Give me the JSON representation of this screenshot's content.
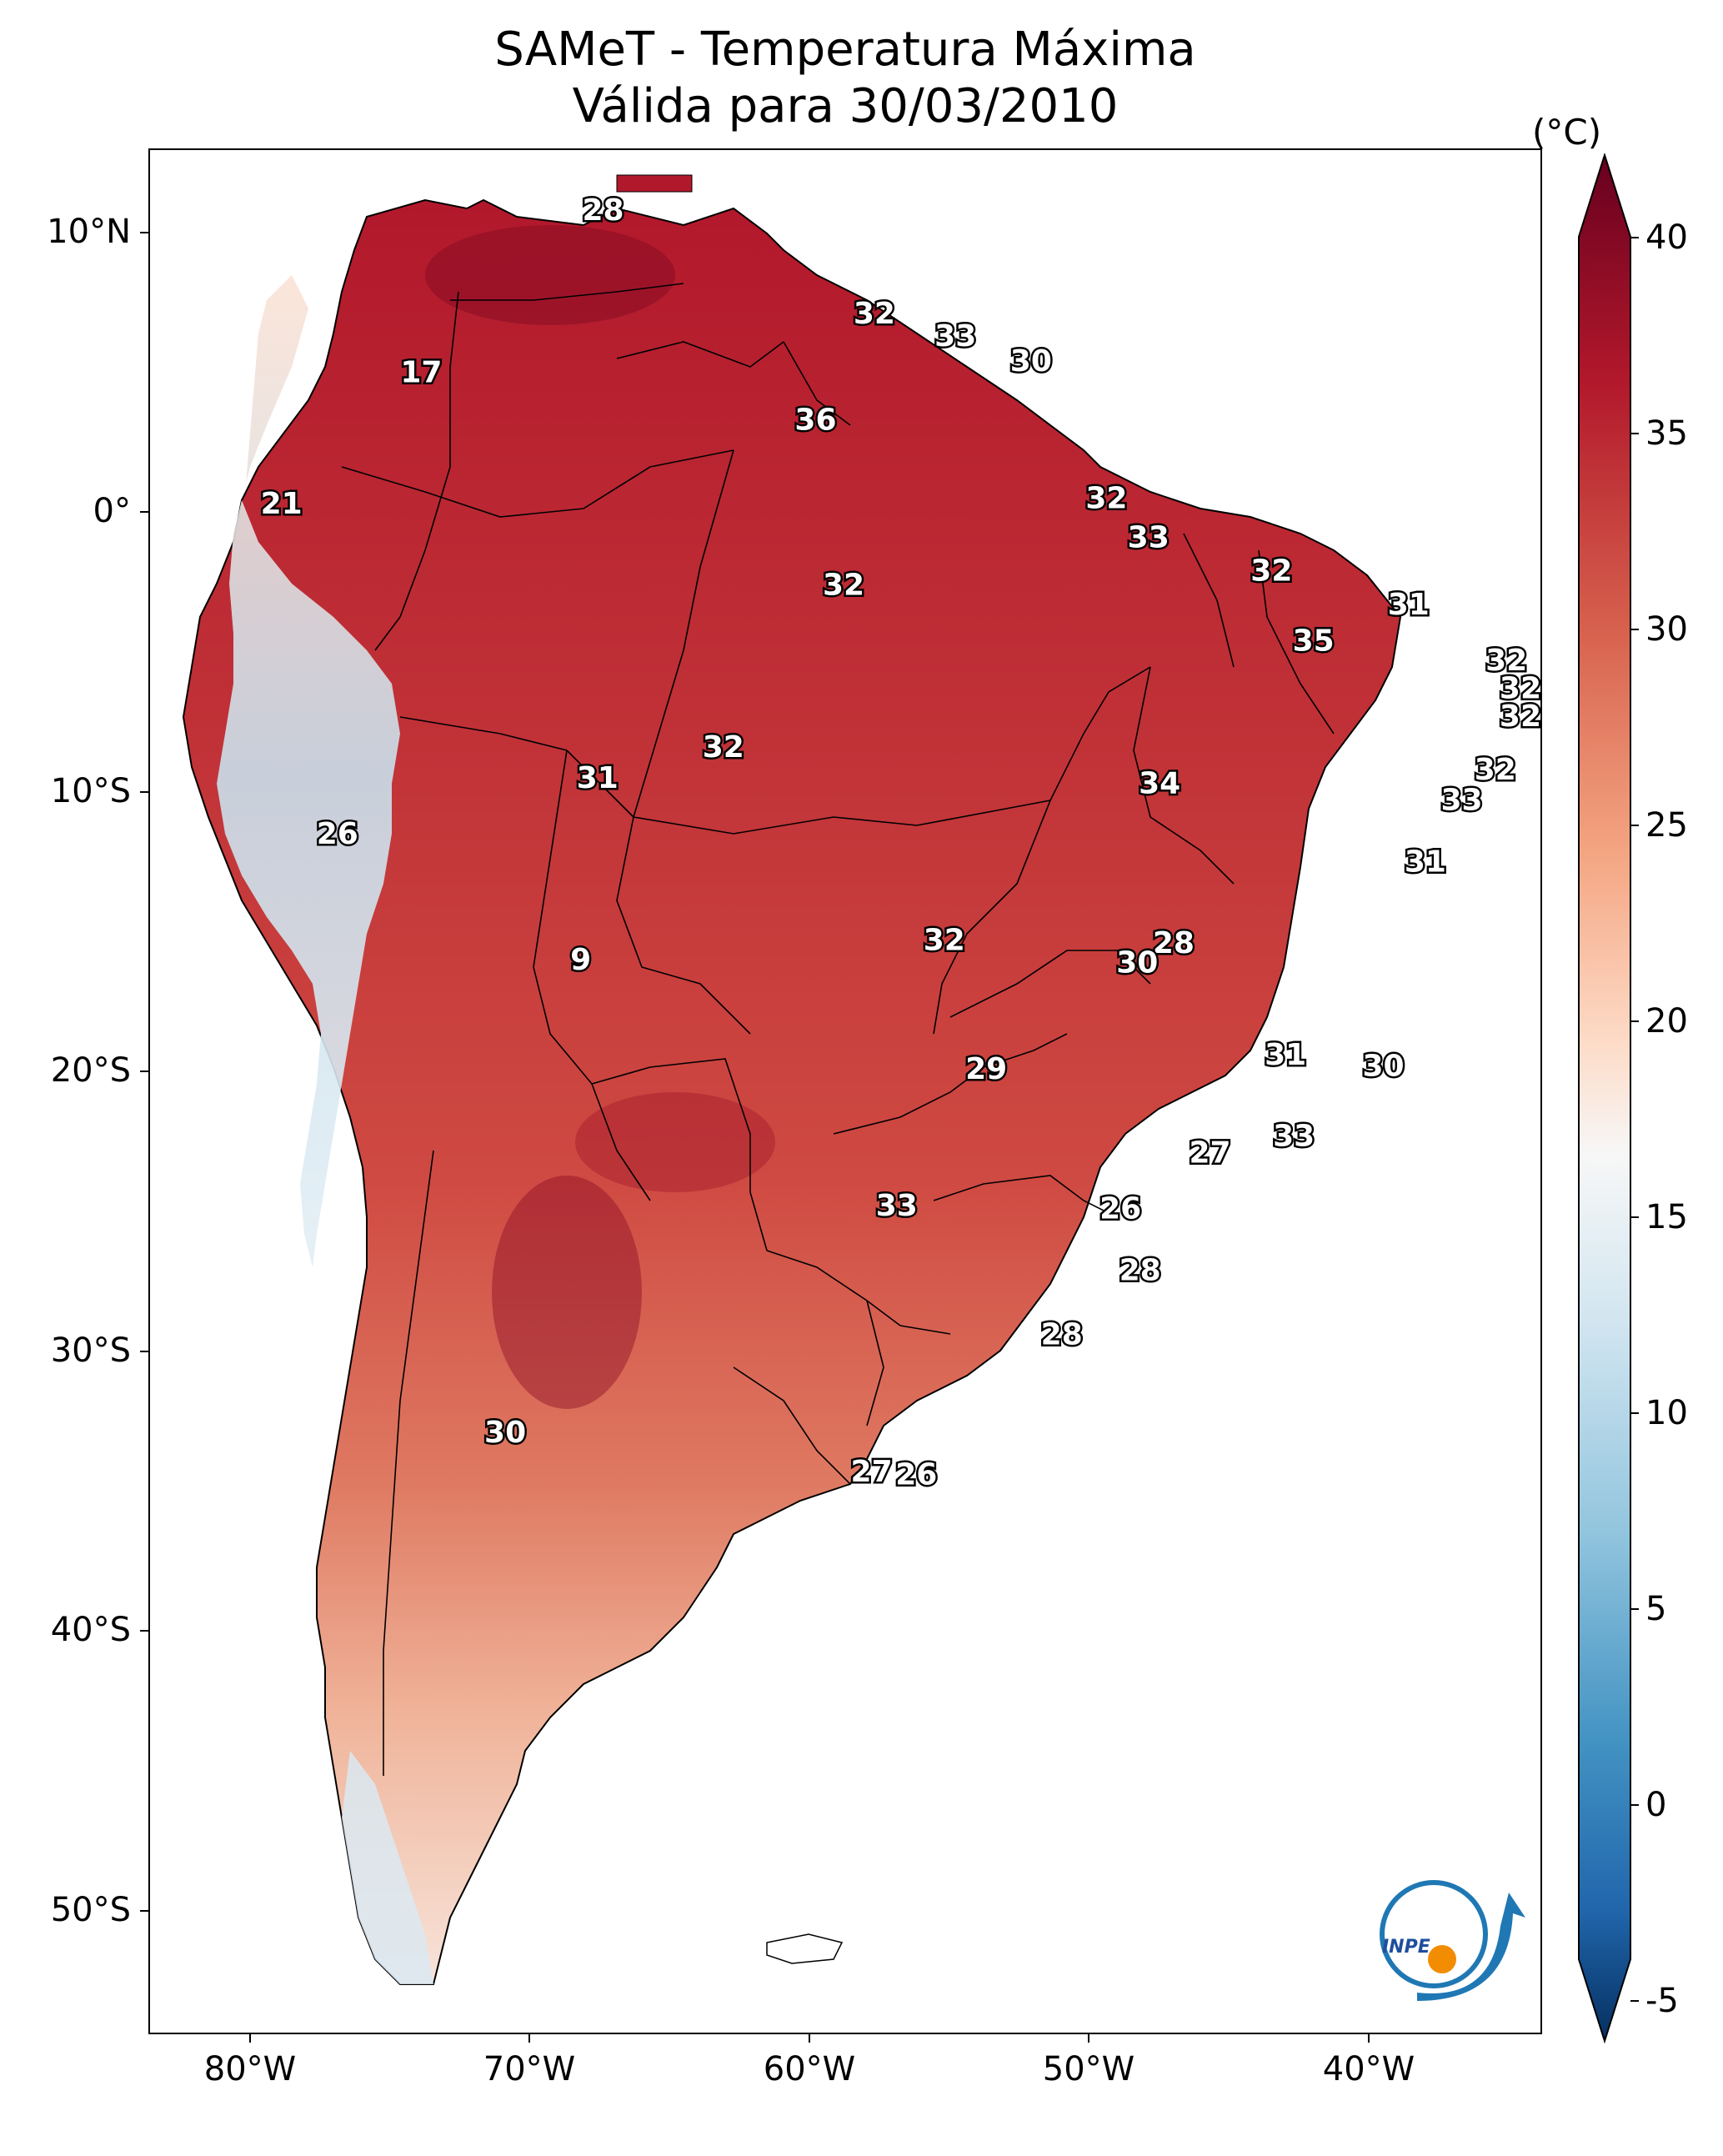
{
  "title": {
    "line1": "SAMeT - Temperatura Máxima",
    "line2": "Válida para 30/03/2010"
  },
  "axes": {
    "lat_labels": [
      "10°N",
      "0°",
      "10°S",
      "20°S",
      "30°S",
      "40°S",
      "50°S"
    ],
    "lon_labels": [
      "80°W",
      "70°W",
      "60°W",
      "50°W",
      "40°W"
    ]
  },
  "colorbar": {
    "unit": "(°C)",
    "ticks": [
      "40",
      "35",
      "30",
      "25",
      "20",
      "15",
      "10",
      "5",
      "0",
      "-5"
    ],
    "min": -7,
    "max": 40,
    "colors": {
      "high": "#67001f",
      "warm": "#d6604d",
      "mild": "#fddbc7",
      "neutral": "#f7f7f7",
      "cool": "#92c5de",
      "cold": "#053061"
    }
  },
  "logo": {
    "text": "INPE",
    "colors": {
      "blue": "#1f78b4",
      "orange": "#f28c00"
    }
  },
  "station_labels": [
    {
      "text": "28",
      "lon": -67.4,
      "lat": 10.3
    },
    {
      "text": "17",
      "lon": -73.9,
      "lat": 4.5
    },
    {
      "text": "21",
      "lon": -78.9,
      "lat": -0.2
    },
    {
      "text": "32",
      "lon": -57.7,
      "lat": 6.6
    },
    {
      "text": "33",
      "lon": -54.8,
      "lat": 5.8
    },
    {
      "text": "30",
      "lon": -52.1,
      "lat": 4.9
    },
    {
      "text": "36",
      "lon": -59.8,
      "lat": 2.8
    },
    {
      "text": "32",
      "lon": -49.4,
      "lat": 0.0
    },
    {
      "text": "33",
      "lon": -47.9,
      "lat": -1.4
    },
    {
      "text": "32",
      "lon": -58.8,
      "lat": -3.1
    },
    {
      "text": "32",
      "lon": -43.5,
      "lat": -2.6
    },
    {
      "text": "31",
      "lon": -38.6,
      "lat": -3.8
    },
    {
      "text": "35",
      "lon": -42.0,
      "lat": -5.1
    },
    {
      "text": "32",
      "lon": -35.1,
      "lat": -5.8
    },
    {
      "text": "32",
      "lon": -34.6,
      "lat": -6.8
    },
    {
      "text": "32",
      "lon": -34.6,
      "lat": -7.8
    },
    {
      "text": "32",
      "lon": -63.1,
      "lat": -8.9
    },
    {
      "text": "31",
      "lon": -67.6,
      "lat": -10.0
    },
    {
      "text": "32",
      "lon": -35.5,
      "lat": -9.7
    },
    {
      "text": "34",
      "lon": -47.5,
      "lat": -10.2
    },
    {
      "text": "33",
      "lon": -36.7,
      "lat": -10.8
    },
    {
      "text": "26",
      "lon": -76.9,
      "lat": -12.0
    },
    {
      "text": "31",
      "lon": -38.0,
      "lat": -13.0
    },
    {
      "text": "28",
      "lon": -47.0,
      "lat": -15.9
    },
    {
      "text": "32",
      "lon": -55.2,
      "lat": -15.8
    },
    {
      "text": "30",
      "lon": -48.3,
      "lat": -16.6
    },
    {
      "text": "9",
      "lon": -68.2,
      "lat": -16.5
    },
    {
      "text": "29",
      "lon": -53.7,
      "lat": -20.4
    },
    {
      "text": "31",
      "lon": -43.0,
      "lat": -19.9
    },
    {
      "text": "30",
      "lon": -39.5,
      "lat": -20.3
    },
    {
      "text": "33",
      "lon": -42.7,
      "lat": -22.8
    },
    {
      "text": "27",
      "lon": -45.7,
      "lat": -23.4
    },
    {
      "text": "33",
      "lon": -56.9,
      "lat": -25.3
    },
    {
      "text": "26",
      "lon": -48.9,
      "lat": -25.4
    },
    {
      "text": "28",
      "lon": -48.2,
      "lat": -27.6
    },
    {
      "text": "28",
      "lon": -51.0,
      "lat": -29.9
    },
    {
      "text": "30",
      "lon": -70.9,
      "lat": -33.4
    },
    {
      "text": "27",
      "lon": -57.8,
      "lat": -34.8
    },
    {
      "text": "26",
      "lon": -56.2,
      "lat": -34.9
    }
  ]
}
